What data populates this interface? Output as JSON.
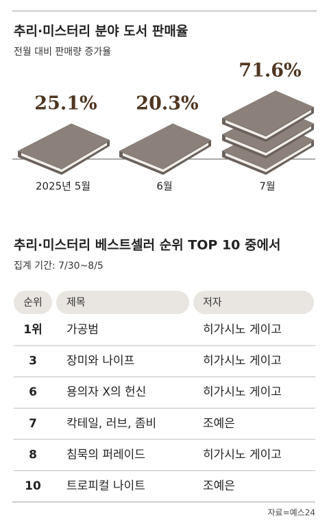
{
  "chart_data": {
    "type": "pictograph",
    "title": "추리·미스터리 분야 도서 판매율",
    "subtitle": "전월 대비 판매량 증가율",
    "categories": [
      "2025년 5월",
      "6월",
      "7월"
    ],
    "values": [
      25.1,
      20.3,
      71.6
    ],
    "value_labels": [
      "25.1%",
      "20.3%",
      "71.6%"
    ],
    "color": "#8b807a"
  },
  "table": {
    "title": "추리·미스터리 베스트셀러 순위 TOP 10 중에서",
    "subtitle": "집계 기간: 7/30~8/5",
    "header": [
      "순위",
      "제목",
      "저자"
    ],
    "rows": [
      [
        "1위",
        "가공범",
        "히가시노 게이고"
      ],
      [
        "3",
        "장미와 나이프",
        "히가시노 게이고"
      ],
      [
        "6",
        "용의자 X의 헌신",
        "히가시노 게이고"
      ],
      [
        "7",
        "칵테일, 러브, 좀비",
        "조예은"
      ],
      [
        "8",
        "침묵의 퍼레이드",
        "히가시노 게이고"
      ],
      [
        "10",
        "트로피컬 나이트",
        "조예은"
      ]
    ]
  },
  "source": "자료=예스24"
}
